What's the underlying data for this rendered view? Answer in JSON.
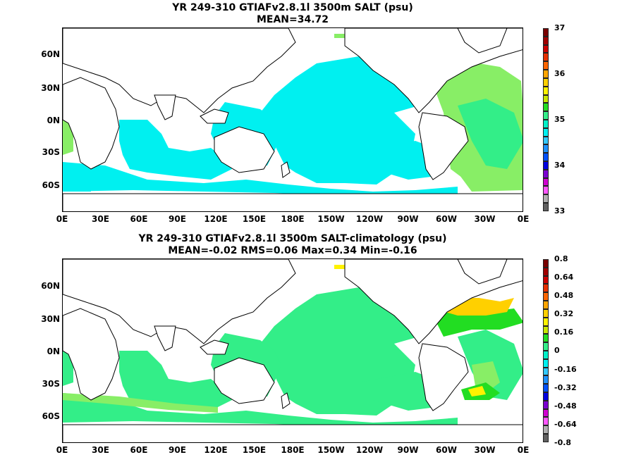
{
  "panels": [
    {
      "title_line1": "YR 249-310 GTIAFv2.8.1l 3500m SALT (psu)",
      "title_line2": "MEAN=34.72",
      "colorbar": {
        "labels": [
          "37",
          "36",
          "35",
          "34",
          "33"
        ],
        "colors": [
          "#7a0000",
          "#a00000",
          "#cc0000",
          "#e63000",
          "#ff6600",
          "#ffa500",
          "#ffd000",
          "#fff200",
          "#c8e600",
          "#22dd22",
          "#33ee88",
          "#00f0c8",
          "#00f0f0",
          "#33c8ff",
          "#1e90ff",
          "#0050ff",
          "#0000e0",
          "#7b00d0",
          "#d000d0",
          "#ff55ff",
          "#b0b0b0",
          "#606060"
        ]
      }
    },
    {
      "title_line1": "YR 249-310 GTIAFv2.8.1l 3500m SALT-climatology (psu)",
      "title_line2": "MEAN=-0.02   RMS=0.06   Max=0.34   Min=-0.16",
      "colorbar": {
        "labels": [
          "0.8",
          "0.64",
          "0.48",
          "0.32",
          "0.16",
          "0",
          "-0.16",
          "-0.32",
          "-0.48",
          "-0.64",
          "-0.8"
        ],
        "colors": [
          "#7a0000",
          "#a00000",
          "#cc0000",
          "#e63000",
          "#ff6600",
          "#ffa500",
          "#ffd000",
          "#fff200",
          "#c8e600",
          "#22dd22",
          "#33ee88",
          "#00f0c8",
          "#00f0f0",
          "#33c8ff",
          "#1e90ff",
          "#0050ff",
          "#0000e0",
          "#7b00d0",
          "#d000d0",
          "#ff55ff",
          "#b0b0b0",
          "#606060"
        ]
      }
    }
  ],
  "axes": {
    "x_ticks": [
      "0E",
      "30E",
      "60E",
      "90E",
      "120E",
      "150E",
      "180E",
      "150W",
      "120W",
      "90W",
      "60W",
      "30W",
      "0E"
    ],
    "y_ticks": [
      "60N",
      "30N",
      "0N",
      "30S",
      "60S"
    ]
  },
  "colors": {
    "land": "#ffffff",
    "coast": "#000000",
    "cyan_fill": "#00f0f0",
    "green_fill": "#33ee88",
    "light_green": "#88ee66",
    "bright_green": "#22dd22",
    "yellow": "#ffd000",
    "orange": "#ffa500"
  }
}
